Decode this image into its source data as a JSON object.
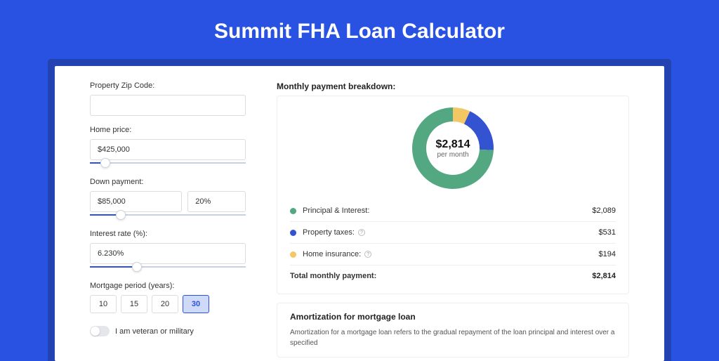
{
  "colors": {
    "page_bg": "#2952e3",
    "outer_card_bg": "#2443b3",
    "card_bg": "#ffffff",
    "input_border": "#dadce0",
    "slider_track": "#c8d0e6",
    "slider_fill": "#2952e3",
    "divider": "#eceef2",
    "title_text": "#ffffff",
    "body_text": "#333333"
  },
  "title": "Summit FHA Loan Calculator",
  "form": {
    "zip": {
      "label": "Property Zip Code:",
      "value": ""
    },
    "home_price": {
      "label": "Home price:",
      "value": "$425,000",
      "slider_pct": 10
    },
    "down_payment": {
      "label": "Down payment:",
      "value": "$85,000",
      "percent_value": "20%",
      "slider_pct": 20
    },
    "interest_rate": {
      "label": "Interest rate (%):",
      "value": "6.230%",
      "slider_pct": 30
    },
    "mortgage_period": {
      "label": "Mortgage period (years):",
      "options": [
        "10",
        "15",
        "20",
        "30"
      ],
      "selected": "30"
    },
    "veteran": {
      "label": "I am veteran or military",
      "checked": false
    }
  },
  "breakdown": {
    "header": "Monthly payment breakdown:",
    "donut": {
      "center_value": "$2,814",
      "center_sub": "per month",
      "slices": [
        {
          "label": "Principal & Interest:",
          "value": "$2,089",
          "color": "#53a882",
          "pct": 74.2
        },
        {
          "label": "Property taxes:",
          "value": "$531",
          "color": "#3453d1",
          "pct": 18.9,
          "has_info": true
        },
        {
          "label": "Home insurance:",
          "value": "$194",
          "color": "#f3c763",
          "pct": 6.9,
          "has_info": true
        }
      ]
    },
    "total": {
      "label": "Total monthly payment:",
      "value": "$2,814"
    }
  },
  "amortization": {
    "title": "Amortization for mortgage loan",
    "text": "Amortization for a mortgage loan refers to the gradual repayment of the loan principal and interest over a specified"
  }
}
